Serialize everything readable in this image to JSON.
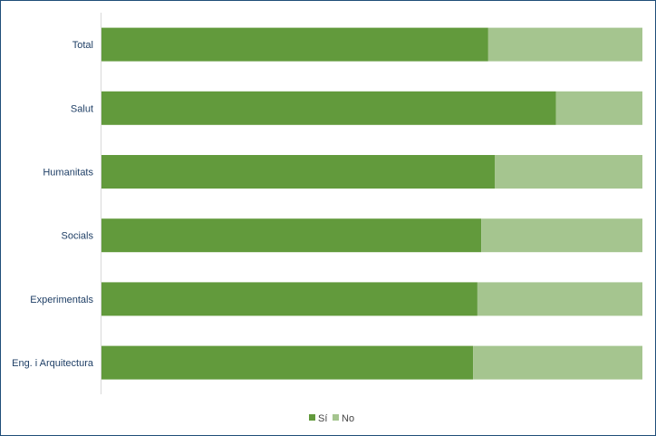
{
  "chart_data": {
    "type": "bar",
    "orientation": "horizontal",
    "stacked": true,
    "normalized_percent": true,
    "categories": [
      "Total",
      "Salut",
      "Humanitats",
      "Socials",
      "Experimentals",
      "Eng. i Arquitectura"
    ],
    "series": [
      {
        "name": "Sí",
        "values": [
          71.5,
          84,
          72.7,
          70.2,
          69.5,
          68.7
        ],
        "color": "#629a3c"
      },
      {
        "name": "No",
        "values": [
          28.5,
          16,
          27.3,
          29.8,
          30.5,
          31.3
        ],
        "color": "#a5c58f"
      }
    ],
    "xlim": [
      0,
      100
    ],
    "grid": false,
    "legend_position": "bottom"
  }
}
